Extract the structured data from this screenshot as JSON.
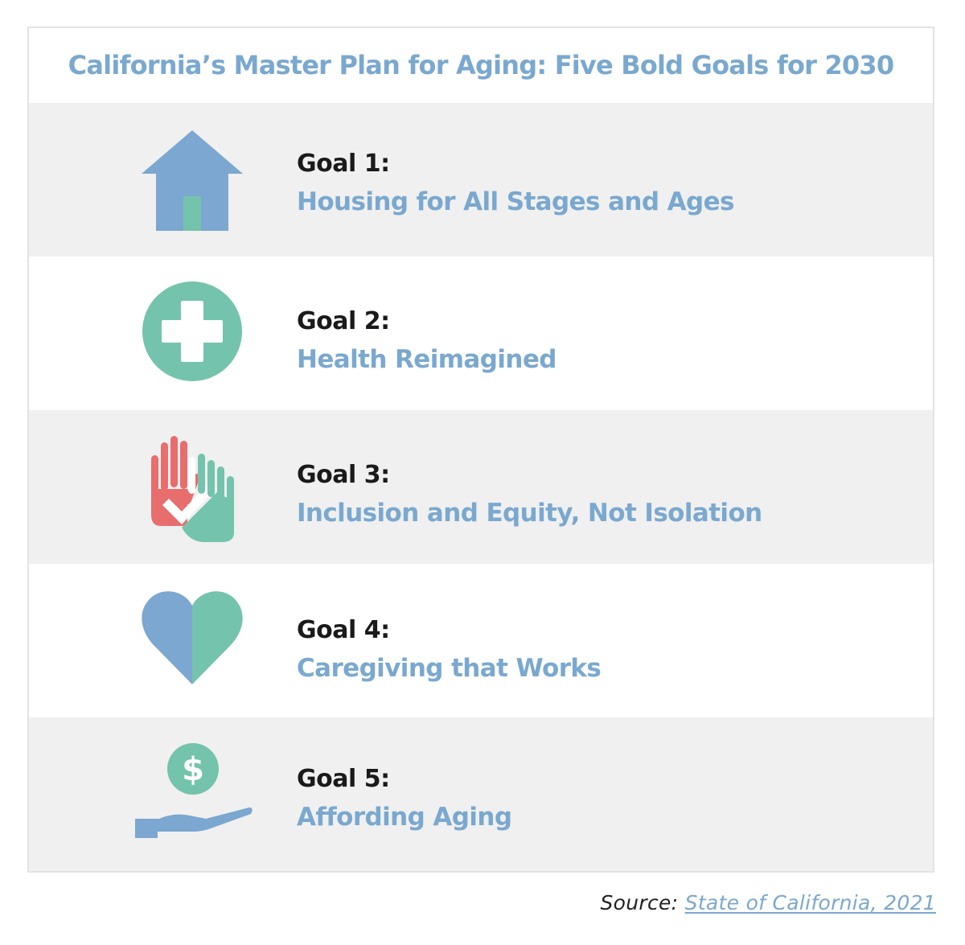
{
  "colors": {
    "accent_blue": "#7aa8cf",
    "teal": "#74c3ad",
    "coral": "#e86d6d",
    "icon_blue": "#7ba7d0",
    "label_dark": "#1a1a1a",
    "row_shade": "#f0f0f0"
  },
  "title": "California’s Master Plan for Aging: Five Bold Goals for 2030",
  "goals": [
    {
      "label": "Goal 1:",
      "name": "Housing for All Stages and Ages",
      "icon": "house-icon"
    },
    {
      "label": "Goal 2:",
      "name": "Health Reimagined",
      "icon": "medical-cross-icon"
    },
    {
      "label": "Goal 3:",
      "name": "Inclusion and Equity, Not Isolation",
      "icon": "raised-hands-icon"
    },
    {
      "label": "Goal 4:",
      "name": "Caregiving that Works",
      "icon": "heart-icon"
    },
    {
      "label": "Goal 5:",
      "name": "Affording Aging",
      "icon": "dollar-hand-icon"
    }
  ],
  "source": {
    "prefix": "Source: ",
    "link_text": "State of California, 2021"
  }
}
